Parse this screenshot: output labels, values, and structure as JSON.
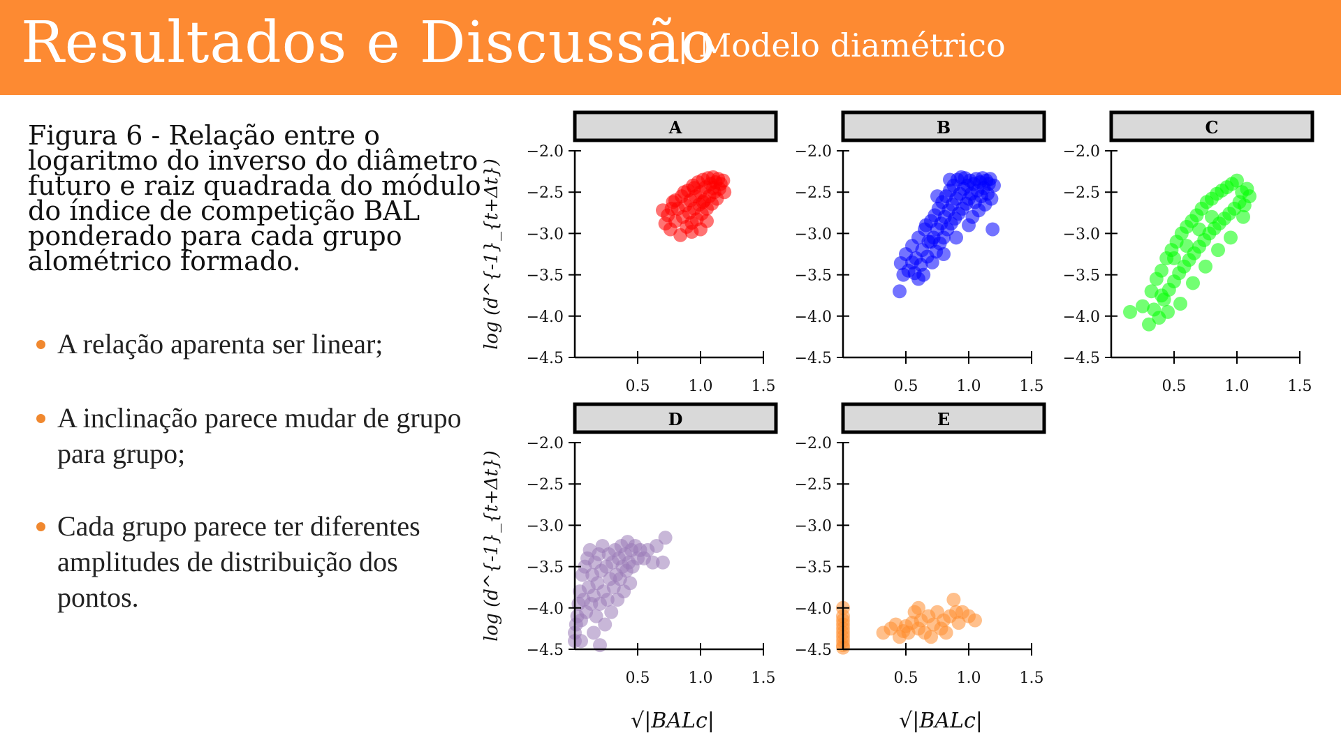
{
  "header": {
    "title": "Resultados e Discussão",
    "subtitle": "| Modelo diamétrico",
    "background_color": "#fd8a32"
  },
  "caption": "Figura 6 - Relação entre o logaritmo do inverso do diâmetro futuro e raiz quadrada do módulo do índice de competição BAL ponderado para cada grupo alométrico formado.",
  "bullets": [
    "A relação aparenta ser linear;",
    "A inclinação parece mudar de grupo para grupo;",
    "Cada grupo parece ter diferentes amplitudes de distribuição dos pontos."
  ],
  "bullet_color": "#f0882f",
  "chart_data": {
    "type": "scatter",
    "ylabel": "log (d^{-1}_{t+Δt})",
    "xlabel": "√|BALc|",
    "x_ticks": [
      0.5,
      1.0,
      1.5
    ],
    "x_tick_labels": [
      "0.5",
      "1.0",
      "1.5"
    ],
    "y_ticks": [
      -2.0,
      -2.5,
      -3.0,
      -3.5,
      -4.0,
      -4.5
    ],
    "y_tick_labels": [
      "−2.0",
      "−2.5",
      "−3.0",
      "−3.5",
      "−4.0",
      "−4.5"
    ],
    "xlim": [
      0.0,
      1.5
    ],
    "ylim": [
      -4.5,
      -2.0
    ],
    "grid": false,
    "panels": [
      {
        "name": "A",
        "color": "#ff0000",
        "points": [
          [
            0.7,
            -2.72
          ],
          [
            0.72,
            -2.88
          ],
          [
            0.74,
            -2.78
          ],
          [
            0.76,
            -2.95
          ],
          [
            0.78,
            -2.62
          ],
          [
            0.8,
            -2.85
          ],
          [
            0.82,
            -2.7
          ],
          [
            0.84,
            -3.02
          ],
          [
            0.85,
            -2.55
          ],
          [
            0.86,
            -2.8
          ],
          [
            0.88,
            -2.66
          ],
          [
            0.89,
            -2.92
          ],
          [
            0.9,
            -2.48
          ],
          [
            0.91,
            -2.75
          ],
          [
            0.92,
            -2.6
          ],
          [
            0.93,
            -2.87
          ],
          [
            0.94,
            -2.42
          ],
          [
            0.95,
            -2.7
          ],
          [
            0.96,
            -2.55
          ],
          [
            0.97,
            -2.83
          ],
          [
            0.98,
            -2.38
          ],
          [
            0.99,
            -2.65
          ],
          [
            1.0,
            -2.5
          ],
          [
            1.01,
            -2.76
          ],
          [
            1.02,
            -2.35
          ],
          [
            1.03,
            -2.6
          ],
          [
            1.04,
            -2.44
          ],
          [
            1.05,
            -2.7
          ],
          [
            1.06,
            -2.33
          ],
          [
            1.07,
            -2.55
          ],
          [
            1.08,
            -2.4
          ],
          [
            1.09,
            -2.64
          ],
          [
            1.1,
            -2.32
          ],
          [
            1.11,
            -2.5
          ],
          [
            1.12,
            -2.38
          ],
          [
            1.13,
            -2.58
          ],
          [
            1.14,
            -2.34
          ],
          [
            1.15,
            -2.46
          ],
          [
            1.16,
            -2.4
          ],
          [
            1.18,
            -2.36
          ],
          [
            1.19,
            -2.5
          ],
          [
            0.8,
            -2.6
          ],
          [
            0.87,
            -2.5
          ],
          [
            0.93,
            -2.98
          ],
          [
            1.0,
            -2.95
          ],
          [
            1.05,
            -2.85
          ],
          [
            0.77,
            -2.7
          ],
          [
            0.95,
            -2.45
          ],
          [
            1.02,
            -2.62
          ],
          [
            1.1,
            -2.45
          ]
        ]
      },
      {
        "name": "B",
        "color": "#0000ff",
        "points": [
          [
            0.45,
            -3.7
          ],
          [
            0.46,
            -3.36
          ],
          [
            0.5,
            -3.25
          ],
          [
            0.52,
            -3.45
          ],
          [
            0.55,
            -3.15
          ],
          [
            0.57,
            -3.48
          ],
          [
            0.58,
            -3.3
          ],
          [
            0.6,
            -3.05
          ],
          [
            0.62,
            -3.38
          ],
          [
            0.63,
            -3.2
          ],
          [
            0.64,
            -3.5
          ],
          [
            0.65,
            -2.95
          ],
          [
            0.67,
            -3.28
          ],
          [
            0.68,
            -3.1
          ],
          [
            0.7,
            -2.85
          ],
          [
            0.71,
            -3.35
          ],
          [
            0.72,
            -3.05
          ],
          [
            0.73,
            -2.78
          ],
          [
            0.74,
            -3.22
          ],
          [
            0.75,
            -2.95
          ],
          [
            0.76,
            -2.7
          ],
          [
            0.77,
            -3.12
          ],
          [
            0.78,
            -2.88
          ],
          [
            0.79,
            -2.62
          ],
          [
            0.8,
            -3.05
          ],
          [
            0.81,
            -2.8
          ],
          [
            0.82,
            -2.55
          ],
          [
            0.83,
            -2.95
          ],
          [
            0.84,
            -2.72
          ],
          [
            0.85,
            -2.48
          ],
          [
            0.86,
            -2.88
          ],
          [
            0.87,
            -2.65
          ],
          [
            0.88,
            -2.42
          ],
          [
            0.89,
            -2.82
          ],
          [
            0.9,
            -2.58
          ],
          [
            0.91,
            -2.35
          ],
          [
            0.92,
            -2.76
          ],
          [
            0.93,
            -2.52
          ],
          [
            0.94,
            -2.32
          ],
          [
            0.95,
            -2.7
          ],
          [
            0.96,
            -2.46
          ],
          [
            0.97,
            -2.33
          ],
          [
            0.98,
            -2.64
          ],
          [
            0.99,
            -2.42
          ],
          [
            1.0,
            -2.58
          ],
          [
            1.01,
            -2.36
          ],
          [
            1.02,
            -2.52
          ],
          [
            1.03,
            -2.8
          ],
          [
            1.04,
            -2.4
          ],
          [
            1.05,
            -2.62
          ],
          [
            1.06,
            -2.34
          ],
          [
            1.07,
            -2.48
          ],
          [
            1.08,
            -2.72
          ],
          [
            1.09,
            -2.38
          ],
          [
            1.1,
            -2.55
          ],
          [
            1.11,
            -2.33
          ],
          [
            1.12,
            -2.45
          ],
          [
            1.13,
            -2.65
          ],
          [
            1.14,
            -2.36
          ],
          [
            1.15,
            -2.52
          ],
          [
            1.16,
            -2.4
          ],
          [
            1.17,
            -2.34
          ],
          [
            1.18,
            -2.58
          ],
          [
            1.19,
            -2.95
          ],
          [
            1.2,
            -2.42
          ],
          [
            0.6,
            -3.55
          ],
          [
            0.7,
            -3.1
          ],
          [
            0.8,
            -3.25
          ],
          [
            0.9,
            -3.05
          ],
          [
            1.0,
            -2.9
          ],
          [
            0.66,
            -2.9
          ],
          [
            0.75,
            -2.55
          ],
          [
            0.85,
            -2.35
          ],
          [
            0.55,
            -3.35
          ],
          [
            0.48,
            -3.5
          ]
        ]
      },
      {
        "name": "C",
        "color": "#00ff00",
        "points": [
          [
            0.15,
            -3.95
          ],
          [
            0.25,
            -3.88
          ],
          [
            0.3,
            -4.1
          ],
          [
            0.32,
            -3.7
          ],
          [
            0.34,
            -3.92
          ],
          [
            0.36,
            -3.55
          ],
          [
            0.38,
            -4.02
          ],
          [
            0.4,
            -3.45
          ],
          [
            0.42,
            -3.8
          ],
          [
            0.44,
            -3.3
          ],
          [
            0.46,
            -3.68
          ],
          [
            0.48,
            -3.2
          ],
          [
            0.5,
            -3.58
          ],
          [
            0.52,
            -3.1
          ],
          [
            0.54,
            -3.48
          ],
          [
            0.56,
            -3.0
          ],
          [
            0.58,
            -3.4
          ],
          [
            0.6,
            -2.92
          ],
          [
            0.62,
            -3.32
          ],
          [
            0.64,
            -2.85
          ],
          [
            0.66,
            -3.24
          ],
          [
            0.68,
            -2.78
          ],
          [
            0.7,
            -3.16
          ],
          [
            0.72,
            -2.7
          ],
          [
            0.74,
            -3.08
          ],
          [
            0.76,
            -2.62
          ],
          [
            0.78,
            -3.0
          ],
          [
            0.8,
            -2.58
          ],
          [
            0.82,
            -2.94
          ],
          [
            0.84,
            -2.52
          ],
          [
            0.86,
            -2.88
          ],
          [
            0.88,
            -2.48
          ],
          [
            0.9,
            -2.82
          ],
          [
            0.92,
            -2.44
          ],
          [
            0.94,
            -2.76
          ],
          [
            0.96,
            -2.4
          ],
          [
            0.98,
            -2.7
          ],
          [
            1.0,
            -2.36
          ],
          [
            1.02,
            -2.62
          ],
          [
            1.04,
            -2.5
          ],
          [
            1.06,
            -2.66
          ],
          [
            1.08,
            -2.46
          ],
          [
            1.1,
            -2.55
          ],
          [
            0.45,
            -3.95
          ],
          [
            0.55,
            -3.85
          ],
          [
            0.65,
            -3.6
          ],
          [
            0.75,
            -3.4
          ],
          [
            0.85,
            -3.2
          ],
          [
            0.95,
            -3.05
          ],
          [
            1.05,
            -2.8
          ],
          [
            0.4,
            -3.75
          ],
          [
            0.5,
            -3.3
          ],
          [
            0.6,
            -3.15
          ],
          [
            0.7,
            -2.95
          ],
          [
            0.8,
            -2.8
          ]
        ]
      },
      {
        "name": "D",
        "color": "#9b7bb8",
        "points": [
          [
            0.0,
            -4.3
          ],
          [
            0.0,
            -4.4
          ],
          [
            0.01,
            -4.2
          ],
          [
            0.02,
            -4.1
          ],
          [
            0.03,
            -3.95
          ],
          [
            0.04,
            -3.8
          ],
          [
            0.05,
            -4.15
          ],
          [
            0.06,
            -3.6
          ],
          [
            0.07,
            -3.9
          ],
          [
            0.08,
            -3.5
          ],
          [
            0.09,
            -4.05
          ],
          [
            0.1,
            -3.4
          ],
          [
            0.11,
            -3.75
          ],
          [
            0.12,
            -3.3
          ],
          [
            0.13,
            -3.95
          ],
          [
            0.14,
            -3.6
          ],
          [
            0.15,
            -3.85
          ],
          [
            0.16,
            -3.45
          ],
          [
            0.17,
            -4.1
          ],
          [
            0.18,
            -3.7
          ],
          [
            0.19,
            -3.35
          ],
          [
            0.2,
            -3.95
          ],
          [
            0.21,
            -3.55
          ],
          [
            0.22,
            -3.25
          ],
          [
            0.23,
            -3.8
          ],
          [
            0.24,
            -4.2
          ],
          [
            0.25,
            -3.5
          ],
          [
            0.26,
            -3.9
          ],
          [
            0.27,
            -3.35
          ],
          [
            0.28,
            -3.65
          ],
          [
            0.29,
            -4.05
          ],
          [
            0.3,
            -3.45
          ],
          [
            0.31,
            -3.75
          ],
          [
            0.32,
            -3.3
          ],
          [
            0.33,
            -3.6
          ],
          [
            0.34,
            -3.9
          ],
          [
            0.35,
            -3.4
          ],
          [
            0.36,
            -3.65
          ],
          [
            0.37,
            -3.25
          ],
          [
            0.38,
            -3.5
          ],
          [
            0.39,
            -3.8
          ],
          [
            0.4,
            -3.35
          ],
          [
            0.41,
            -3.55
          ],
          [
            0.42,
            -3.2
          ],
          [
            0.43,
            -3.45
          ],
          [
            0.44,
            -3.7
          ],
          [
            0.45,
            -3.3
          ],
          [
            0.46,
            -3.5
          ],
          [
            0.48,
            -3.25
          ],
          [
            0.5,
            -3.4
          ],
          [
            0.52,
            -3.3
          ],
          [
            0.55,
            -3.4
          ],
          [
            0.58,
            -3.3
          ],
          [
            0.62,
            -3.45
          ],
          [
            0.65,
            -3.25
          ],
          [
            0.7,
            -3.45
          ],
          [
            0.72,
            -3.15
          ],
          [
            0.2,
            -4.45
          ],
          [
            0.15,
            -4.3
          ],
          [
            0.05,
            -4.4
          ]
        ]
      },
      {
        "name": "E",
        "color": "#ff8c2e",
        "points": [
          [
            0.0,
            -4.0
          ],
          [
            0.0,
            -4.1
          ],
          [
            0.0,
            -4.2
          ],
          [
            0.0,
            -4.3
          ],
          [
            0.0,
            -4.35
          ],
          [
            0.0,
            -4.4
          ],
          [
            0.0,
            -4.45
          ],
          [
            0.0,
            -4.48
          ],
          [
            0.0,
            -4.25
          ],
          [
            0.0,
            -4.15
          ],
          [
            0.32,
            -4.3
          ],
          [
            0.38,
            -4.25
          ],
          [
            0.42,
            -4.2
          ],
          [
            0.45,
            -4.35
          ],
          [
            0.48,
            -4.28
          ],
          [
            0.5,
            -4.22
          ],
          [
            0.52,
            -4.3
          ],
          [
            0.55,
            -4.18
          ],
          [
            0.57,
            -4.05
          ],
          [
            0.6,
            -4.25
          ],
          [
            0.62,
            -4.15
          ],
          [
            0.65,
            -4.3
          ],
          [
            0.68,
            -4.1
          ],
          [
            0.72,
            -4.2
          ],
          [
            0.75,
            -4.05
          ],
          [
            0.78,
            -4.25
          ],
          [
            0.8,
            -4.15
          ],
          [
            0.82,
            -4.3
          ],
          [
            0.85,
            -4.1
          ],
          [
            0.88,
            -3.9
          ],
          [
            0.9,
            -4.05
          ],
          [
            0.92,
            -4.18
          ],
          [
            0.95,
            -4.05
          ],
          [
            1.0,
            -4.1
          ],
          [
            1.05,
            -4.15
          ],
          [
            0.6,
            -4.0
          ],
          [
            0.7,
            -4.35
          ]
        ]
      }
    ]
  }
}
